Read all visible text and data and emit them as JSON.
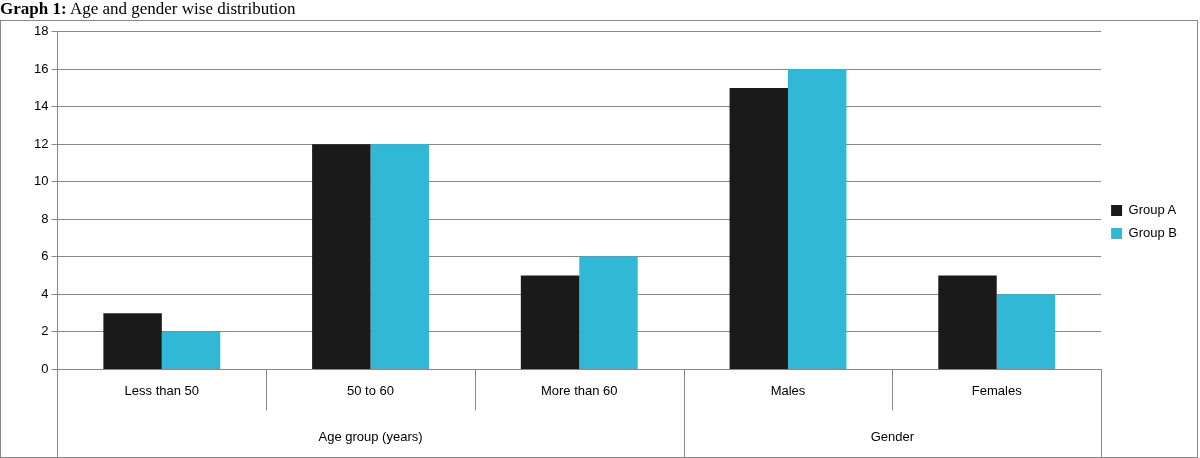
{
  "chart_data": {
    "type": "bar",
    "title": "Graph 1: Age and gender wise distribution",
    "categories": [
      "Less than 50",
      "50 to 60",
      "More than 60",
      "Males",
      "Females"
    ],
    "series": [
      {
        "name": "Group A",
        "color": "#1a1a1a",
        "values": [
          3,
          12,
          5,
          15,
          5
        ]
      },
      {
        "name": "Group B",
        "color": "#31b8d6",
        "values": [
          2,
          12,
          6,
          16,
          4
        ]
      }
    ],
    "annotations": [
      "Age group (years)",
      "Gender"
    ],
    "ylim": [
      0,
      18
    ],
    "yticks": [
      0,
      2,
      4,
      6,
      8,
      10,
      12,
      14,
      16,
      18
    ],
    "grid": "y",
    "legend": "right"
  }
}
